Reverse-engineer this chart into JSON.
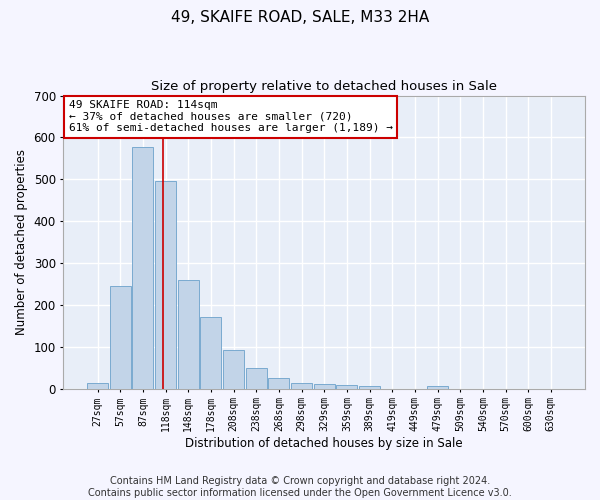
{
  "title": "49, SKAIFE ROAD, SALE, M33 2HA",
  "subtitle": "Size of property relative to detached houses in Sale",
  "xlabel": "Distribution of detached houses by size in Sale",
  "ylabel": "Number of detached properties",
  "bar_color": "#c2d4e8",
  "bar_edge_color": "#7aaad0",
  "background_color": "#e8eef8",
  "fig_background_color": "#f5f5ff",
  "grid_color": "#ffffff",
  "categories": [
    "27sqm",
    "57sqm",
    "87sqm",
    "118sqm",
    "148sqm",
    "178sqm",
    "208sqm",
    "238sqm",
    "268sqm",
    "298sqm",
    "329sqm",
    "359sqm",
    "389sqm",
    "419sqm",
    "449sqm",
    "479sqm",
    "509sqm",
    "540sqm",
    "570sqm",
    "600sqm",
    "630sqm"
  ],
  "values": [
    13,
    244,
    578,
    495,
    259,
    170,
    92,
    49,
    25,
    13,
    12,
    9,
    6,
    0,
    0,
    7,
    0,
    0,
    0,
    0,
    0
  ],
  "ylim": [
    0,
    700
  ],
  "yticks": [
    0,
    100,
    200,
    300,
    400,
    500,
    600,
    700
  ],
  "property_line_bin": 2.9,
  "annotation_text": "49 SKAIFE ROAD: 114sqm\n← 37% of detached houses are smaller (720)\n61% of semi-detached houses are larger (1,189) →",
  "annotation_box_color": "#ffffff",
  "annotation_box_edge": "#cc0000",
  "vline_color": "#cc0000",
  "footer_text": "Contains HM Land Registry data © Crown copyright and database right 2024.\nContains public sector information licensed under the Open Government Licence v3.0.",
  "title_fontsize": 11,
  "subtitle_fontsize": 9.5,
  "annotation_fontsize": 8,
  "footer_fontsize": 7,
  "tick_fontsize": 7,
  "ylabel_fontsize": 8.5,
  "xlabel_fontsize": 8.5
}
